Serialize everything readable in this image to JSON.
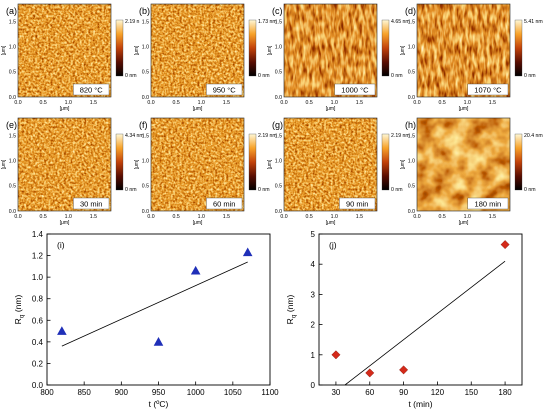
{
  "afm_panels": [
    {
      "letter": "(a)",
      "caption": "820 °C",
      "scale_max": "2.19 n",
      "scale_min": "0 nm",
      "texture": "fine"
    },
    {
      "letter": "(b)",
      "caption": "950 °C",
      "scale_max": "1.73 nm",
      "scale_min": "0 nm",
      "texture": "fine"
    },
    {
      "letter": "(c)",
      "caption": "1000 °C",
      "scale_max": "4.65 nm",
      "scale_min": "0 nm",
      "texture": "streak"
    },
    {
      "letter": "(d)",
      "caption": "1070 °C",
      "scale_max": "5.41 nm",
      "scale_min": "0 nm",
      "texture": "streak"
    },
    {
      "letter": "(e)",
      "caption": "30 min",
      "scale_max": "4.34 nm",
      "scale_min": "0 nm",
      "texture": "fine"
    },
    {
      "letter": "(f)",
      "caption": "60 min",
      "scale_max": "2.19 nm",
      "scale_min": "0 nm",
      "texture": "fine"
    },
    {
      "letter": "(g)",
      "caption": "90 min",
      "scale_max": "2.19 nm",
      "scale_min": "0 nm",
      "texture": "fine"
    },
    {
      "letter": "(h)",
      "caption": "180 min",
      "scale_max": "20.4 nm",
      "scale_min": "0 nm",
      "texture": "blob"
    }
  ],
  "afm_axis": {
    "unit": "[μm]",
    "ticks": [
      "0.0",
      "0.5",
      "1.0",
      "1.5"
    ]
  },
  "chart_data": [
    {
      "type": "scatter",
      "panel_label": "(i)",
      "xlabel": "t (ºC)",
      "ylabel": "Rq (nm)",
      "ylabel_main": "R",
      "ylabel_sub": "q",
      "ylabel_unit": " (nm)",
      "xlim": [
        800,
        1100
      ],
      "ylim": [
        0,
        1.4
      ],
      "xticks": [
        800,
        850,
        900,
        950,
        1000,
        1050,
        1100
      ],
      "yticks": [
        0.0,
        0.2,
        0.4,
        0.6,
        0.8,
        1.0,
        1.2,
        1.4
      ],
      "x": [
        820,
        950,
        1000,
        1070
      ],
      "y": [
        0.5,
        0.4,
        1.06,
        1.23
      ],
      "marker": "triangle",
      "color": "#1f2fb8",
      "fit": {
        "x": [
          820,
          1070
        ],
        "y": [
          0.36,
          1.14
        ]
      }
    },
    {
      "type": "scatter",
      "panel_label": "(j)",
      "xlabel": "t (min)",
      "ylabel": "Rq (nm)",
      "ylabel_main": "R",
      "ylabel_sub": "q",
      "ylabel_unit": " (nm)",
      "xlim": [
        15,
        195
      ],
      "ylim": [
        0,
        5
      ],
      "xticks": [
        30,
        60,
        90,
        120,
        150,
        180
      ],
      "yticks": [
        0,
        1,
        2,
        3,
        4,
        5
      ],
      "x": [
        30,
        60,
        90,
        180
      ],
      "y": [
        1.0,
        0.4,
        0.5,
        4.65
      ],
      "marker": "diamond",
      "color": "#d42a1a",
      "fit": {
        "x": [
          38,
          180
        ],
        "y": [
          0.0,
          4.1
        ]
      }
    }
  ]
}
